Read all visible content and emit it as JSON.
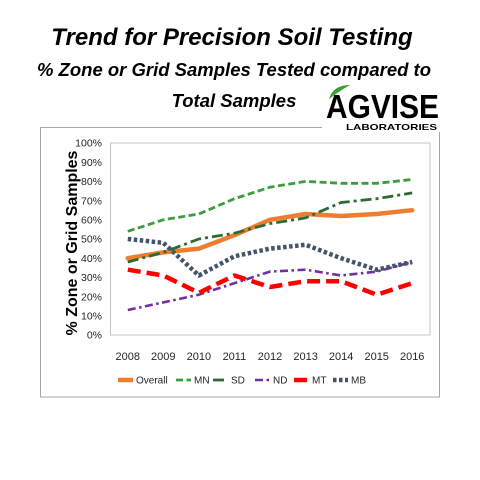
{
  "chart_data": {
    "type": "line",
    "title": "Trend for Precision Soil Testing",
    "subtitle_lines": [
      "% Zone or Grid Samples Tested compared to",
      "Total Samples"
    ],
    "xlabel": "",
    "ylabel": "% Zone or Grid Samples",
    "categories": [
      "2008",
      "2009",
      "2010",
      "2011",
      "2012",
      "2013",
      "2014",
      "2015",
      "2016"
    ],
    "ylim": [
      0,
      100
    ],
    "ytick_labels": [
      "0%",
      "10%",
      "20%",
      "30%",
      "40%",
      "50%",
      "60%",
      "70%",
      "80%",
      "90%",
      "100%"
    ],
    "grid": false,
    "legend_position": "bottom",
    "series": [
      {
        "name": "Overall",
        "color": "#ed7d31",
        "line_style": "solid",
        "values": [
          40,
          43,
          45,
          52,
          60,
          63,
          62,
          63,
          65
        ]
      },
      {
        "name": "MN",
        "color": "#3a9d3e",
        "line_style": "dash",
        "values": [
          54,
          60,
          63,
          71,
          77,
          80,
          79,
          79,
          81
        ]
      },
      {
        "name": "SD",
        "color": "#2f6b30",
        "line_style": "long-dash-dot",
        "values": [
          38,
          43,
          50,
          53,
          58,
          61,
          69,
          71,
          74
        ]
      },
      {
        "name": "ND",
        "color": "#7030a0",
        "line_style": "dash-dot",
        "values": [
          13,
          17,
          21,
          27,
          33,
          34,
          31,
          33,
          38
        ]
      },
      {
        "name": "MT",
        "color": "#ff0000",
        "line_style": "long-dash",
        "values": [
          34,
          31,
          22,
          31,
          25,
          28,
          28,
          21,
          27
        ]
      },
      {
        "name": "MB",
        "color": "#44546a",
        "line_style": "square-dot",
        "values": [
          50,
          48,
          31,
          41,
          45,
          47,
          40,
          34,
          38
        ]
      }
    ]
  },
  "logo": {
    "wordmark": "AGVISE",
    "tagline": "LABORATORIES",
    "leaf_color": "#3a9d3e"
  }
}
